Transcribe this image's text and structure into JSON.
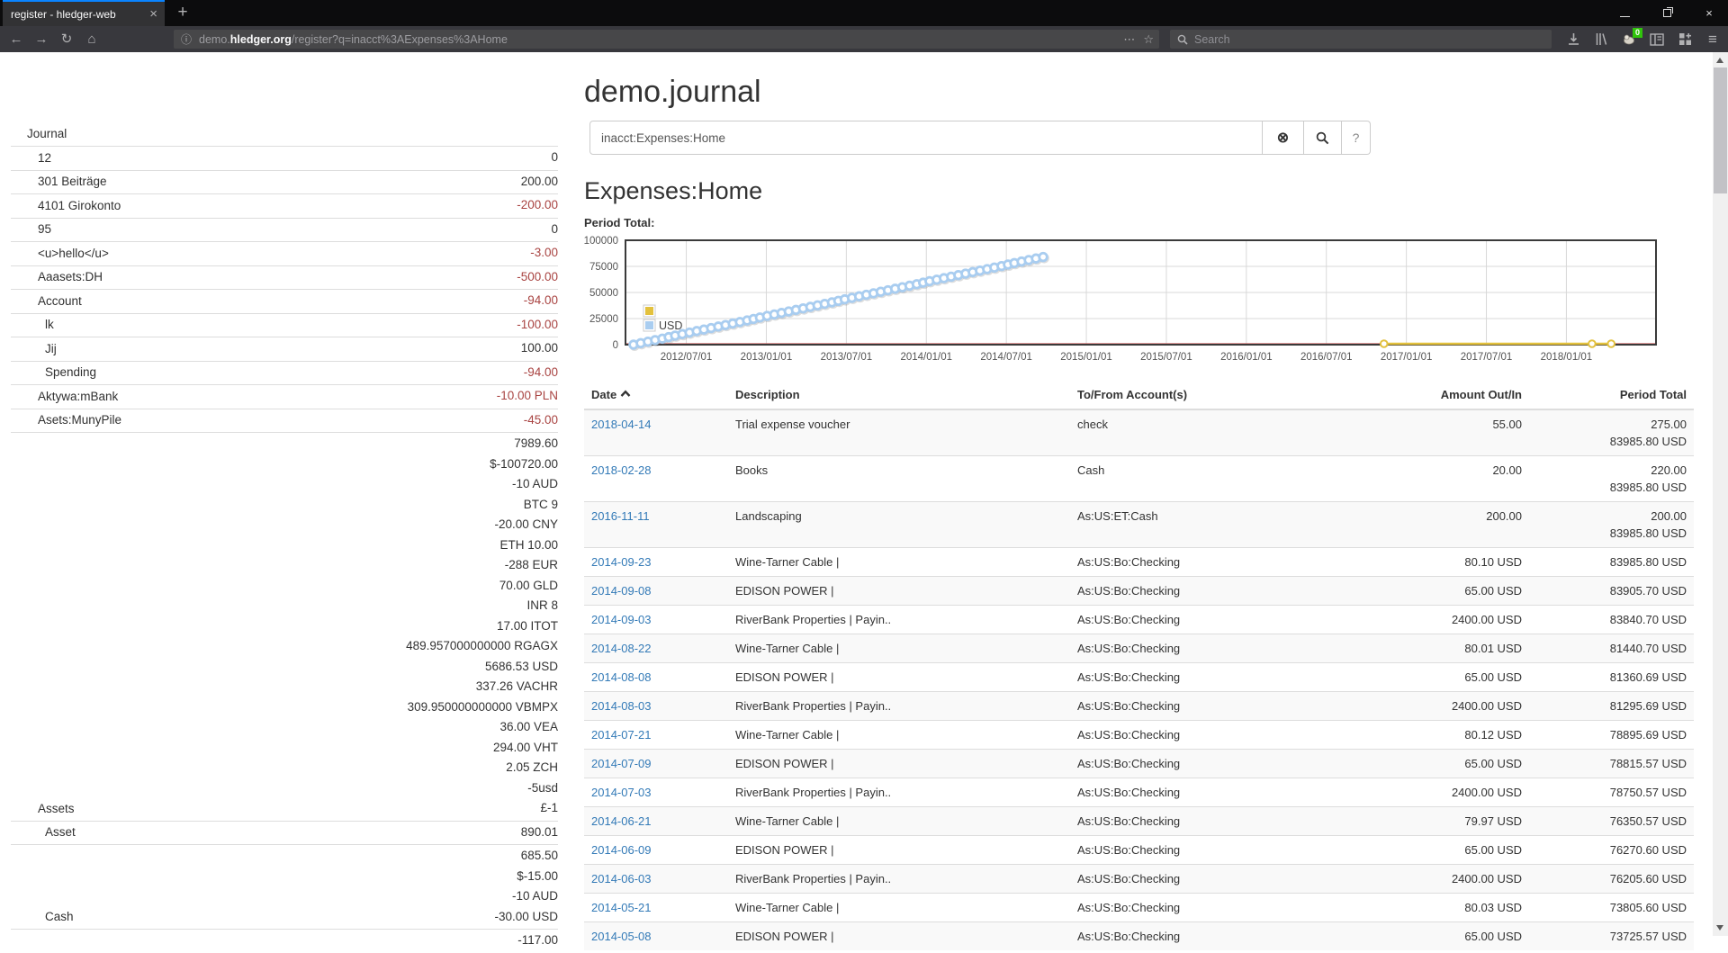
{
  "browser": {
    "tab": {
      "title": "register - hledger-web",
      "close_glyph": "×"
    },
    "new_tab_glyph": "+",
    "icons": {
      "back": "←",
      "forward": "→",
      "reload": "↻",
      "home": "⌂",
      "info": "ⓘ",
      "overflow": "⋯",
      "bookmark": "☆",
      "menu": "≡"
    },
    "url_segments": [
      {
        "text": "demo.",
        "dim": true
      },
      {
        "text": "hledger.org",
        "dim": false
      },
      {
        "text": "/register?q=inacct%3AExpenses%3AHome",
        "dim": true
      }
    ],
    "search_placeholder": "Search",
    "extension_badge": "0"
  },
  "sidebar": {
    "heading": "Journal",
    "items": [
      {
        "label": "12",
        "indent": 1,
        "amounts": [
          {
            "text": "0"
          }
        ]
      },
      {
        "label": "301 Beiträge",
        "indent": 1,
        "amounts": [
          {
            "text": "200.00"
          }
        ]
      },
      {
        "label": "4101 Girokonto",
        "indent": 1,
        "amounts": [
          {
            "text": "-200.00",
            "negative": true
          }
        ]
      },
      {
        "label": "95",
        "indent": 1,
        "amounts": [
          {
            "text": "0"
          }
        ]
      },
      {
        "label": "<u>hello</u>",
        "indent": 1,
        "amounts": [
          {
            "text": "-3.00",
            "negative": true
          }
        ]
      },
      {
        "label": "Aaasets:DH",
        "indent": 1,
        "amounts": [
          {
            "text": "-500.00",
            "negative": true
          }
        ]
      },
      {
        "label": "Account",
        "indent": 1,
        "amounts": [
          {
            "text": "-94.00",
            "negative": true
          }
        ]
      },
      {
        "label": "lk",
        "indent": 2,
        "amounts": [
          {
            "text": "-100.00",
            "negative": true
          }
        ]
      },
      {
        "label": "Jij",
        "indent": 2,
        "amounts": [
          {
            "text": "100.00"
          }
        ]
      },
      {
        "label": "Spending",
        "indent": 2,
        "amounts": [
          {
            "text": "-94.00",
            "negative": true
          }
        ]
      },
      {
        "label": "Aktywa:mBank",
        "indent": 1,
        "amounts": [
          {
            "text": "-10.00 PLN",
            "negative": true
          }
        ]
      },
      {
        "label": "Asets:MunyPile",
        "indent": 1,
        "amounts": [
          {
            "text": "-45.00",
            "negative": true
          }
        ]
      },
      {
        "label": "Assets",
        "indent": 1,
        "amounts": [
          {
            "text": "7989.60"
          },
          {
            "text": "$-100720.00"
          },
          {
            "text": "-10 AUD"
          },
          {
            "text": "BTC 9"
          },
          {
            "text": "-20.00 CNY"
          },
          {
            "text": "ETH 10.00"
          },
          {
            "text": "-288 EUR"
          },
          {
            "text": "70.00 GLD"
          },
          {
            "text": "INR 8"
          },
          {
            "text": "17.00 ITOT"
          },
          {
            "text": "489.957000000000 RGAGX"
          },
          {
            "text": "5686.53 USD"
          },
          {
            "text": "337.26 VACHR"
          },
          {
            "text": "309.950000000000 VBMPX"
          },
          {
            "text": "36.00 VEA"
          },
          {
            "text": "294.00 VHT"
          },
          {
            "text": "2.05 ZCH"
          },
          {
            "text": "-5usd"
          },
          {
            "text": "£-1"
          }
        ]
      },
      {
        "label": "Asset",
        "indent": 2,
        "amounts": [
          {
            "text": "890.01"
          }
        ]
      },
      {
        "label": "Cash",
        "indent": 2,
        "amounts": [
          {
            "text": "685.50"
          },
          {
            "text": "$-15.00"
          },
          {
            "text": "-10 AUD"
          },
          {
            "text": "-30.00 USD"
          }
        ]
      },
      {
        "label": "",
        "indent": 2,
        "amounts": [
          {
            "text": "-117.00"
          }
        ]
      }
    ]
  },
  "main": {
    "title": "demo.journal",
    "search": {
      "value": "inacct:Expenses:Home",
      "clear_glyph": "⊗",
      "help_glyph": "?"
    },
    "account_heading": "Expenses:Home",
    "chart_label": "Period Total:"
  },
  "chart_data": {
    "type": "line",
    "title": "Period Total:",
    "x_range_years": [
      2012.12,
      2018.56
    ],
    "y_range": [
      0,
      100000
    ],
    "y_ticks": [
      0,
      25000,
      50000,
      75000,
      100000
    ],
    "x_ticks": [
      {
        "year": 2012.5,
        "label": "2012/07/01"
      },
      {
        "year": 2013.0,
        "label": "2013/01/01"
      },
      {
        "year": 2013.5,
        "label": "2013/07/01"
      },
      {
        "year": 2014.0,
        "label": "2014/01/01"
      },
      {
        "year": 2014.5,
        "label": "2014/07/01"
      },
      {
        "year": 2015.0,
        "label": "2015/01/01"
      },
      {
        "year": 2015.5,
        "label": "2015/07/01"
      },
      {
        "year": 2016.0,
        "label": "2016/01/01"
      },
      {
        "year": 2016.5,
        "label": "2016/07/01"
      },
      {
        "year": 2017.0,
        "label": "2017/01/01"
      },
      {
        "year": 2017.5,
        "label": "2017/07/01"
      },
      {
        "year": 2018.0,
        "label": "2018/01/01"
      }
    ],
    "grid": true,
    "legend_position": "bottom-left",
    "legend": [
      {
        "label": "",
        "color": "#e3c13d"
      },
      {
        "label": "USD",
        "color": "#a9cdf0"
      }
    ],
    "zero_line_color": "#cc5c5c",
    "series": [
      {
        "name": "USD",
        "color": "#a9cdf0",
        "marker": "circle",
        "points": [
          [
            2012.17,
            0
          ],
          [
            2012.26,
            2896
          ],
          [
            2012.35,
            5792
          ],
          [
            2012.43,
            8688
          ],
          [
            2012.52,
            11584
          ],
          [
            2012.61,
            14480
          ],
          [
            2012.7,
            17376
          ],
          [
            2012.79,
            20272
          ],
          [
            2012.88,
            23168
          ],
          [
            2012.96,
            26064
          ],
          [
            2013.05,
            28960
          ],
          [
            2013.14,
            31856
          ],
          [
            2013.23,
            34752
          ],
          [
            2013.32,
            37648
          ],
          [
            2013.41,
            40544
          ],
          [
            2013.49,
            43441
          ],
          [
            2013.58,
            46337
          ],
          [
            2013.67,
            49233
          ],
          [
            2013.76,
            52129
          ],
          [
            2013.85,
            55025
          ],
          [
            2013.94,
            57921
          ],
          [
            2014.02,
            60817
          ],
          [
            2014.11,
            63713
          ],
          [
            2014.2,
            66609
          ],
          [
            2014.29,
            69505
          ],
          [
            2014.38,
            72401
          ],
          [
            2014.47,
            75297
          ],
          [
            2014.55,
            78193
          ],
          [
            2014.64,
            81089
          ],
          [
            2014.73,
            83986
          ]
        ]
      },
      {
        "name": "",
        "color": "#e3c13d",
        "marker": "circle-line",
        "points": [
          [
            2016.86,
            0
          ],
          [
            2018.16,
            0
          ],
          [
            2018.28,
            0
          ]
        ]
      }
    ]
  },
  "register_table": {
    "headers": [
      "Date",
      "Description",
      "To/From Account(s)",
      "Amount Out/In",
      "Period Total"
    ],
    "sort": {
      "column": "Date",
      "direction": "asc"
    },
    "rows": [
      {
        "date": "2018-04-14",
        "description": "Trial expense voucher",
        "account": "check",
        "amount": "55.00",
        "period_total": "275.00",
        "period_total_2": "83985.80 USD"
      },
      {
        "date": "2018-02-28",
        "description": "Books",
        "account": "Cash",
        "amount": "20.00",
        "period_total": "220.00",
        "period_total_2": "83985.80 USD"
      },
      {
        "date": "2016-11-11",
        "description": "Landscaping",
        "account": "As:US:ET:Cash",
        "amount": "200.00",
        "period_total": "200.00",
        "period_total_2": "83985.80 USD"
      },
      {
        "date": "2014-09-23",
        "description": "Wine-Tarner Cable |",
        "account": "As:US:Bo:Checking",
        "amount": "80.10 USD",
        "period_total": "83985.80 USD"
      },
      {
        "date": "2014-09-08",
        "description": "EDISON POWER |",
        "account": "As:US:Bo:Checking",
        "amount": "65.00 USD",
        "period_total": "83905.70 USD"
      },
      {
        "date": "2014-09-03",
        "description": "RiverBank Properties | Payin..",
        "account": "As:US:Bo:Checking",
        "amount": "2400.00 USD",
        "period_total": "83840.70 USD"
      },
      {
        "date": "2014-08-22",
        "description": "Wine-Tarner Cable |",
        "account": "As:US:Bo:Checking",
        "amount": "80.01 USD",
        "period_total": "81440.70 USD"
      },
      {
        "date": "2014-08-08",
        "description": "EDISON POWER |",
        "account": "As:US:Bo:Checking",
        "amount": "65.00 USD",
        "period_total": "81360.69 USD"
      },
      {
        "date": "2014-08-03",
        "description": "RiverBank Properties | Payin..",
        "account": "As:US:Bo:Checking",
        "amount": "2400.00 USD",
        "period_total": "81295.69 USD"
      },
      {
        "date": "2014-07-21",
        "description": "Wine-Tarner Cable |",
        "account": "As:US:Bo:Checking",
        "amount": "80.12 USD",
        "period_total": "78895.69 USD"
      },
      {
        "date": "2014-07-09",
        "description": "EDISON POWER |",
        "account": "As:US:Bo:Checking",
        "amount": "65.00 USD",
        "period_total": "78815.57 USD"
      },
      {
        "date": "2014-07-03",
        "description": "RiverBank Properties | Payin..",
        "account": "As:US:Bo:Checking",
        "amount": "2400.00 USD",
        "period_total": "78750.57 USD"
      },
      {
        "date": "2014-06-21",
        "description": "Wine-Tarner Cable |",
        "account": "As:US:Bo:Checking",
        "amount": "79.97 USD",
        "period_total": "76350.57 USD"
      },
      {
        "date": "2014-06-09",
        "description": "EDISON POWER |",
        "account": "As:US:Bo:Checking",
        "amount": "65.00 USD",
        "period_total": "76270.60 USD"
      },
      {
        "date": "2014-06-03",
        "description": "RiverBank Properties | Payin..",
        "account": "As:US:Bo:Checking",
        "amount": "2400.00 USD",
        "period_total": "76205.60 USD"
      },
      {
        "date": "2014-05-21",
        "description": "Wine-Tarner Cable |",
        "account": "As:US:Bo:Checking",
        "amount": "80.03 USD",
        "period_total": "73805.60 USD"
      },
      {
        "date": "2014-05-08",
        "description": "EDISON POWER |",
        "account": "As:US:Bo:Checking",
        "amount": "65.00 USD",
        "period_total": "73725.57 USD"
      }
    ]
  }
}
